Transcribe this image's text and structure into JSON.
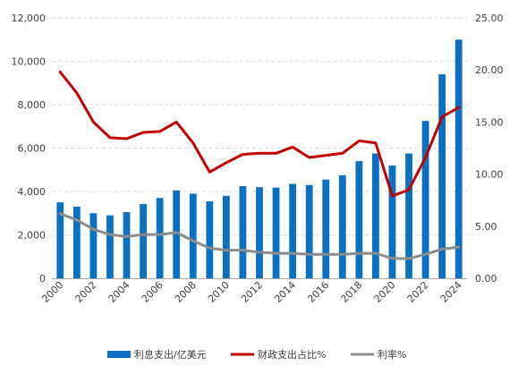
{
  "chart_data": {
    "type": "bar",
    "categories": [
      "2000",
      "2001",
      "2002",
      "2003",
      "2004",
      "2005",
      "2006",
      "2007",
      "2008",
      "2009",
      "2010",
      "2011",
      "2012",
      "2013",
      "2014",
      "2015",
      "2016",
      "2017",
      "2018",
      "2019",
      "2020",
      "2021",
      "2022",
      "2023",
      "2024"
    ],
    "x_tick_labels": [
      "2000",
      "2002",
      "2004",
      "2006",
      "2008",
      "2010",
      "2012",
      "2014",
      "2016",
      "2018",
      "2020",
      "2022",
      "2024"
    ],
    "left_axis": {
      "ylim": [
        0,
        12000
      ],
      "ticks": [
        0,
        2000,
        4000,
        6000,
        8000,
        10000,
        12000
      ],
      "tick_labels": [
        "0",
        "2,000",
        "4,000",
        "6,000",
        "8,000",
        "10,000",
        "12,000"
      ]
    },
    "right_axis": {
      "ylim": [
        0,
        25
      ],
      "ticks": [
        0,
        5,
        10,
        15,
        20,
        25
      ],
      "tick_labels": [
        "0.00",
        "5.00",
        "10.00",
        "15.00",
        "20.00",
        "25.00"
      ]
    },
    "grid": "horizontal-dashed",
    "legend_position": "bottom",
    "series": [
      {
        "name": "利息支出/亿美元",
        "kind": "bar",
        "axis": "left",
        "color": "#0a70c2",
        "values": [
          3500,
          3300,
          3000,
          2900,
          3050,
          3420,
          3700,
          4050,
          3900,
          3550,
          3800,
          4250,
          4200,
          4180,
          4350,
          4300,
          4550,
          4750,
          5400,
          5750,
          5200,
          5750,
          7250,
          9400,
          11000
        ]
      },
      {
        "name": "财政支出占比%",
        "kind": "line",
        "axis": "right",
        "color": "#c00000",
        "values": [
          19.8,
          17.8,
          15.0,
          13.5,
          13.4,
          14.0,
          14.1,
          15.0,
          13.0,
          10.2,
          11.1,
          11.9,
          12.0,
          12.0,
          12.6,
          11.6,
          11.8,
          12.0,
          13.2,
          13.0,
          7.9,
          8.5,
          11.6,
          15.5,
          16.4
        ]
      },
      {
        "name": "利率%",
        "kind": "line",
        "axis": "right",
        "color": "#8c8c8c",
        "values": [
          6.2,
          5.6,
          4.7,
          4.2,
          4.0,
          4.2,
          4.2,
          4.4,
          3.6,
          2.9,
          2.7,
          2.7,
          2.5,
          2.4,
          2.4,
          2.3,
          2.3,
          2.3,
          2.4,
          2.4,
          1.9,
          1.9,
          2.3,
          2.8,
          3.0
        ]
      }
    ]
  }
}
